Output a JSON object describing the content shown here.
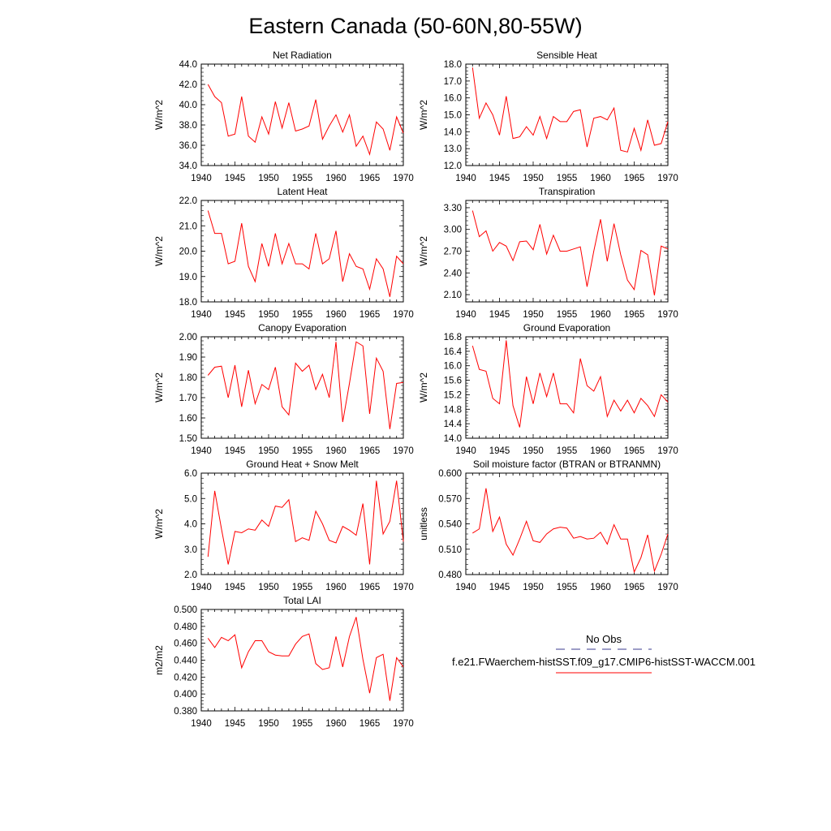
{
  "figure_title": "Eastern Canada (50-60N,80-55W)",
  "colors": {
    "model": "#ff0000",
    "obs": "#3b3b8f",
    "axis": "#000000"
  },
  "legend": {
    "obs_label": "No Obs",
    "model_label": "f.e21.FWaerchem-histSST.f09_g17.CMIP6-histSST-WACCM.001"
  },
  "chart_data": [
    {
      "type": "line",
      "title": "Net Radiation",
      "ylabel": "W/m^2",
      "xlim": [
        1940,
        1970
      ],
      "ylim": [
        34.0,
        44.0
      ],
      "xticks": [
        1940,
        1945,
        1950,
        1955,
        1960,
        1965,
        1970
      ],
      "yticks": [
        34.0,
        36.0,
        38.0,
        40.0,
        42.0,
        44.0
      ],
      "ytick_labels": [
        "34.0",
        "36.0",
        "38.0",
        "40.0",
        "42.0",
        "44.0"
      ],
      "x": [
        1941,
        1942,
        1943,
        1944,
        1945,
        1946,
        1947,
        1948,
        1949,
        1950,
        1951,
        1952,
        1953,
        1954,
        1955,
        1956,
        1957,
        1958,
        1959,
        1960,
        1961,
        1962,
        1963,
        1964,
        1965,
        1966,
        1967,
        1968,
        1969,
        1970
      ],
      "series": [
        {
          "values": [
            42.0,
            40.8,
            40.2,
            36.9,
            37.1,
            40.8,
            36.9,
            36.3,
            38.8,
            37.1,
            40.3,
            37.7,
            40.2,
            37.4,
            37.6,
            37.9,
            40.5,
            36.6,
            37.9,
            39.0,
            37.3,
            39.0,
            35.9,
            36.9,
            35.1,
            38.3,
            37.6,
            35.5,
            38.8,
            37.2
          ]
        }
      ]
    },
    {
      "type": "line",
      "title": "Sensible Heat",
      "ylabel": "W/m^2",
      "xlim": [
        1940,
        1970
      ],
      "ylim": [
        12.0,
        18.0
      ],
      "xticks": [
        1940,
        1945,
        1950,
        1955,
        1960,
        1965,
        1970
      ],
      "yticks": [
        12.0,
        13.0,
        14.0,
        15.0,
        16.0,
        17.0,
        18.0
      ],
      "ytick_labels": [
        "12.0",
        "13.0",
        "14.0",
        "15.0",
        "16.0",
        "17.0",
        "18.0"
      ],
      "x": [
        1941,
        1942,
        1943,
        1944,
        1945,
        1946,
        1947,
        1948,
        1949,
        1950,
        1951,
        1952,
        1953,
        1954,
        1955,
        1956,
        1957,
        1958,
        1959,
        1960,
        1961,
        1962,
        1963,
        1964,
        1965,
        1966,
        1967,
        1968,
        1969,
        1970
      ],
      "series": [
        {
          "values": [
            17.8,
            14.8,
            15.7,
            15.0,
            13.8,
            16.1,
            13.6,
            13.7,
            14.3,
            13.8,
            14.9,
            13.6,
            14.9,
            14.6,
            14.6,
            15.2,
            15.3,
            13.1,
            14.8,
            14.9,
            14.7,
            15.4,
            12.9,
            12.8,
            14.2,
            12.9,
            14.7,
            13.2,
            13.3,
            14.6
          ]
        }
      ]
    },
    {
      "type": "line",
      "title": "Latent Heat",
      "ylabel": "W/m^2",
      "xlim": [
        1940,
        1970
      ],
      "ylim": [
        18.0,
        22.0
      ],
      "xticks": [
        1940,
        1945,
        1950,
        1955,
        1960,
        1965,
        1970
      ],
      "yticks": [
        18.0,
        19.0,
        20.0,
        21.0,
        22.0
      ],
      "ytick_labels": [
        "18.0",
        "19.0",
        "20.0",
        "21.0",
        "22.0"
      ],
      "x": [
        1941,
        1942,
        1943,
        1944,
        1945,
        1946,
        1947,
        1948,
        1949,
        1950,
        1951,
        1952,
        1953,
        1954,
        1955,
        1956,
        1957,
        1958,
        1959,
        1960,
        1961,
        1962,
        1963,
        1964,
        1965,
        1966,
        1967,
        1968,
        1969,
        1970
      ],
      "series": [
        {
          "values": [
            21.6,
            20.7,
            20.7,
            19.5,
            19.6,
            21.1,
            19.4,
            18.8,
            20.3,
            19.4,
            20.7,
            19.5,
            20.3,
            19.5,
            19.5,
            19.3,
            20.7,
            19.5,
            19.7,
            20.8,
            18.8,
            19.9,
            19.4,
            19.3,
            18.5,
            19.7,
            19.3,
            18.2,
            19.8,
            19.5
          ]
        }
      ]
    },
    {
      "type": "line",
      "title": "Transpiration",
      "ylabel": "W/m^2",
      "xlim": [
        1940,
        1970
      ],
      "ylim": [
        2.0,
        3.4
      ],
      "xticks": [
        1940,
        1945,
        1950,
        1955,
        1960,
        1965,
        1970
      ],
      "yticks": [
        2.1,
        2.4,
        2.7,
        3.0,
        3.3
      ],
      "ytick_labels": [
        "2.10",
        "2.40",
        "2.70",
        "3.00",
        "3.30"
      ],
      "x": [
        1941,
        1942,
        1943,
        1944,
        1945,
        1946,
        1947,
        1948,
        1949,
        1950,
        1951,
        1952,
        1953,
        1954,
        1955,
        1956,
        1957,
        1958,
        1959,
        1960,
        1961,
        1962,
        1963,
        1964,
        1965,
        1966,
        1967,
        1968,
        1969,
        1970
      ],
      "series": [
        {
          "values": [
            3.26,
            2.9,
            2.98,
            2.7,
            2.82,
            2.77,
            2.57,
            2.83,
            2.84,
            2.72,
            3.07,
            2.66,
            2.92,
            2.7,
            2.7,
            2.73,
            2.76,
            2.21,
            2.7,
            3.14,
            2.56,
            3.08,
            2.65,
            2.3,
            2.17,
            2.71,
            2.65,
            2.09,
            2.77,
            2.73
          ]
        }
      ]
    },
    {
      "type": "line",
      "title": "Canopy Evaporation",
      "ylabel": "W/m^2",
      "xlim": [
        1940,
        1970
      ],
      "ylim": [
        1.5,
        2.0
      ],
      "xticks": [
        1940,
        1945,
        1950,
        1955,
        1960,
        1965,
        1970
      ],
      "yticks": [
        1.5,
        1.6,
        1.7,
        1.8,
        1.9,
        2.0
      ],
      "ytick_labels": [
        "1.50",
        "1.60",
        "1.70",
        "1.80",
        "1.90",
        "2.00"
      ],
      "x": [
        1941,
        1942,
        1943,
        1944,
        1945,
        1946,
        1947,
        1948,
        1949,
        1950,
        1951,
        1952,
        1953,
        1954,
        1955,
        1956,
        1957,
        1958,
        1959,
        1960,
        1961,
        1962,
        1963,
        1964,
        1965,
        1966,
        1967,
        1968,
        1969,
        1970
      ],
      "series": [
        {
          "values": [
            1.81,
            1.85,
            1.855,
            1.7,
            1.86,
            1.655,
            1.835,
            1.67,
            1.765,
            1.74,
            1.85,
            1.655,
            1.615,
            1.87,
            1.83,
            1.86,
            1.74,
            1.815,
            1.7,
            1.975,
            1.58,
            1.77,
            1.975,
            1.955,
            1.62,
            1.895,
            1.83,
            1.545,
            1.77,
            1.775
          ]
        }
      ]
    },
    {
      "type": "line",
      "title": "Ground Evaporation",
      "ylabel": "W/m^2",
      "xlim": [
        1940,
        1970
      ],
      "ylim": [
        14.0,
        16.8
      ],
      "xticks": [
        1940,
        1945,
        1950,
        1955,
        1960,
        1965,
        1970
      ],
      "yticks": [
        14.0,
        14.4,
        14.8,
        15.2,
        15.6,
        16.0,
        16.4,
        16.8
      ],
      "ytick_labels": [
        "14.0",
        "14.4",
        "14.8",
        "15.2",
        "15.6",
        "16.0",
        "16.4",
        "16.8"
      ],
      "x": [
        1941,
        1942,
        1943,
        1944,
        1945,
        1946,
        1947,
        1948,
        1949,
        1950,
        1951,
        1952,
        1953,
        1954,
        1955,
        1956,
        1957,
        1958,
        1959,
        1960,
        1961,
        1962,
        1963,
        1964,
        1965,
        1966,
        1967,
        1968,
        1969,
        1970
      ],
      "series": [
        {
          "values": [
            16.55,
            15.9,
            15.85,
            15.1,
            14.95,
            16.7,
            14.9,
            14.3,
            15.7,
            14.95,
            15.8,
            15.15,
            15.8,
            14.95,
            14.95,
            14.7,
            16.2,
            15.45,
            15.3,
            15.7,
            14.6,
            15.05,
            14.75,
            15.05,
            14.7,
            15.1,
            14.9,
            14.6,
            15.2,
            15.0
          ]
        }
      ]
    },
    {
      "type": "line",
      "title": "Ground Heat + Snow Melt",
      "ylabel": "W/m^2",
      "xlim": [
        1940,
        1970
      ],
      "ylim": [
        2.0,
        6.0
      ],
      "xticks": [
        1940,
        1945,
        1950,
        1955,
        1960,
        1965,
        1970
      ],
      "yticks": [
        2.0,
        3.0,
        4.0,
        5.0,
        6.0
      ],
      "ytick_labels": [
        "2.0",
        "3.0",
        "4.0",
        "5.0",
        "6.0"
      ],
      "x": [
        1941,
        1942,
        1943,
        1944,
        1945,
        1946,
        1947,
        1948,
        1949,
        1950,
        1951,
        1952,
        1953,
        1954,
        1955,
        1956,
        1957,
        1958,
        1959,
        1960,
        1961,
        1962,
        1963,
        1964,
        1965,
        1966,
        1967,
        1968,
        1969,
        1970
      ],
      "series": [
        {
          "values": [
            2.7,
            5.3,
            3.8,
            2.4,
            3.7,
            3.65,
            3.8,
            3.75,
            4.15,
            3.9,
            4.7,
            4.65,
            4.95,
            3.3,
            3.45,
            3.35,
            4.5,
            4.0,
            3.35,
            3.25,
            3.9,
            3.75,
            3.55,
            4.8,
            2.4,
            5.7,
            3.6,
            4.1,
            5.7,
            3.3
          ]
        }
      ]
    },
    {
      "type": "line",
      "title": "Soil moisture factor (BTRAN or BTRANMN)",
      "ylabel": "unitless",
      "xlim": [
        1940,
        1970
      ],
      "ylim": [
        0.48,
        0.6
      ],
      "xticks": [
        1940,
        1945,
        1950,
        1955,
        1960,
        1965,
        1970
      ],
      "yticks": [
        0.48,
        0.51,
        0.54,
        0.57,
        0.6
      ],
      "ytick_labels": [
        "0.480",
        "0.510",
        "0.540",
        "0.570",
        "0.600"
      ],
      "x": [
        1941,
        1942,
        1943,
        1944,
        1945,
        1946,
        1947,
        1948,
        1949,
        1950,
        1951,
        1952,
        1953,
        1954,
        1955,
        1956,
        1957,
        1958,
        1959,
        1960,
        1961,
        1962,
        1963,
        1964,
        1965,
        1966,
        1967,
        1968,
        1969,
        1970
      ],
      "series": [
        {
          "values": [
            0.529,
            0.534,
            0.582,
            0.531,
            0.548,
            0.516,
            0.503,
            0.522,
            0.543,
            0.52,
            0.518,
            0.528,
            0.534,
            0.536,
            0.535,
            0.523,
            0.525,
            0.522,
            0.523,
            0.53,
            0.516,
            0.539,
            0.522,
            0.522,
            0.483,
            0.5,
            0.527,
            0.484,
            0.504,
            0.528
          ]
        }
      ]
    },
    {
      "type": "line",
      "title": "Total LAI",
      "ylabel": "m2/m2",
      "xlim": [
        1940,
        1970
      ],
      "ylim": [
        0.38,
        0.5
      ],
      "xticks": [
        1940,
        1945,
        1950,
        1955,
        1960,
        1965,
        1970
      ],
      "yticks": [
        0.38,
        0.4,
        0.42,
        0.44,
        0.46,
        0.48,
        0.5
      ],
      "ytick_labels": [
        "0.380",
        "0.400",
        "0.420",
        "0.440",
        "0.460",
        "0.480",
        "0.500"
      ],
      "x": [
        1941,
        1942,
        1943,
        1944,
        1945,
        1946,
        1947,
        1948,
        1949,
        1950,
        1951,
        1952,
        1953,
        1954,
        1955,
        1956,
        1957,
        1958,
        1959,
        1960,
        1961,
        1962,
        1963,
        1964,
        1965,
        1966,
        1967,
        1968,
        1969,
        1970
      ],
      "series": [
        {
          "values": [
            0.466,
            0.455,
            0.467,
            0.463,
            0.47,
            0.431,
            0.45,
            0.463,
            0.463,
            0.45,
            0.446,
            0.445,
            0.445,
            0.459,
            0.468,
            0.471,
            0.436,
            0.429,
            0.431,
            0.468,
            0.432,
            0.468,
            0.491,
            0.441,
            0.401,
            0.443,
            0.447,
            0.392,
            0.443,
            0.432
          ]
        }
      ]
    }
  ]
}
